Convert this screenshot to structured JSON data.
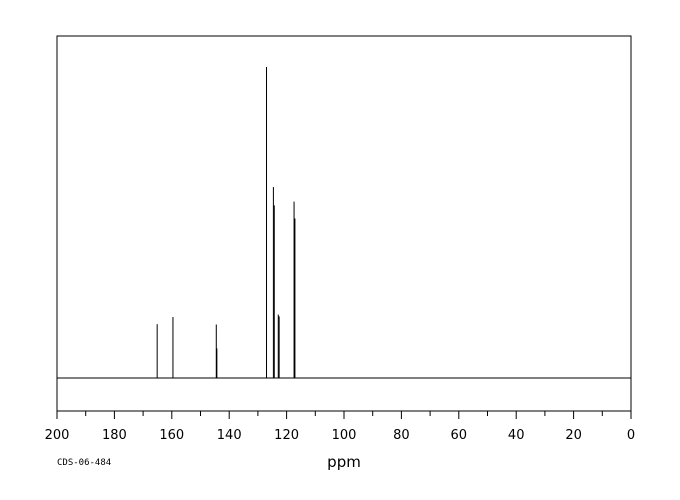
{
  "chart_data": {
    "type": "line",
    "title": "",
    "xlabel": "ppm",
    "ylabel": "",
    "xlim": [
      200,
      0
    ],
    "x_reversed": true,
    "x_ticks": [
      200,
      180,
      160,
      140,
      120,
      100,
      80,
      60,
      40,
      20,
      0
    ],
    "x_minor_step": 10,
    "grid": false,
    "legend": "none",
    "series": [
      {
        "peaks": [
          {
            "ppm": 165.1,
            "intensity": 0.173
          },
          {
            "ppm": 159.6,
            "intensity": 0.196
          },
          {
            "ppm": 144.5,
            "intensity": 0.172
          },
          {
            "ppm": 144.3,
            "intensity": 0.095
          },
          {
            "ppm": 127.0,
            "intensity": 1.0
          },
          {
            "ppm": 124.6,
            "intensity": 0.614
          },
          {
            "ppm": 124.3,
            "intensity": 0.555
          },
          {
            "ppm": 122.9,
            "intensity": 0.204
          },
          {
            "ppm": 122.6,
            "intensity": 0.198
          },
          {
            "ppm": 117.4,
            "intensity": 0.567
          },
          {
            "ppm": 117.1,
            "intensity": 0.513
          }
        ]
      }
    ],
    "annotations": [
      "CDS-06-484"
    ]
  }
}
